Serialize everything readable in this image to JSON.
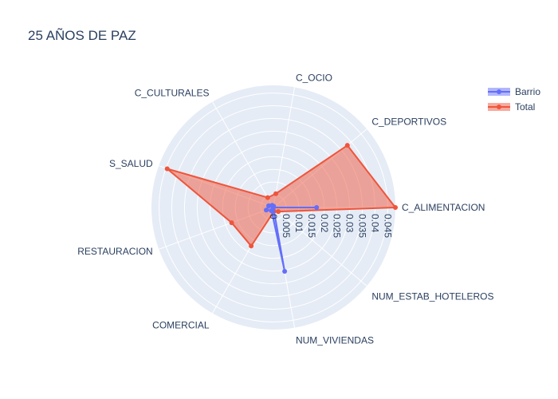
{
  "chart_data": {
    "type": "radar",
    "title": "25 AÑOS DE PAZ",
    "categories": [
      "C_ALIMENTACION",
      "C_DEPORTIVOS",
      "C_OCIO",
      "C_CULTURALES",
      "S_SALUD",
      "RESTAURACION",
      "COMERCIAL",
      "NUM_VIVIENDAS",
      "NUM_ESTAB_HOTELEROS"
    ],
    "radial_ticks": [
      "0",
      "0.005",
      "0.01",
      "0.015",
      "0.02",
      "0.025",
      "0.03",
      "0.035",
      "0.04",
      "0.045"
    ],
    "radial_range": [
      0,
      0.048
    ],
    "grid": true,
    "legend_position": "top-right",
    "series": [
      {
        "name": "Barrio",
        "color": "#636efa",
        "values": [
          0.017,
          0.0,
          0.0005,
          0.001,
          0.002,
          0.003,
          0.0015,
          0.0255,
          0.0
        ]
      },
      {
        "name": "Total",
        "color": "#ef553b",
        "values": [
          0.048,
          0.038,
          0.0055,
          0.0045,
          0.0445,
          0.0175,
          0.0175,
          0.0015,
          0.0025
        ]
      }
    ]
  }
}
